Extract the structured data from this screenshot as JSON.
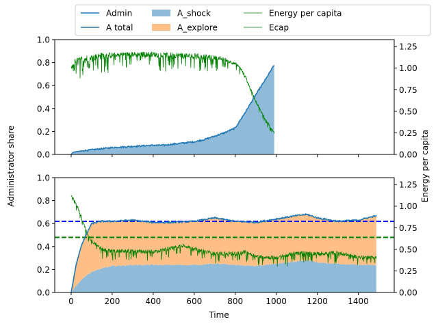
{
  "figure": {
    "ylabel_left": "Administrator share",
    "ylabel_right": "Energy per capita",
    "xlabel": "Time"
  },
  "legend": [
    {
      "label": "Admin",
      "kind": "line",
      "color": "#1f77b4"
    },
    {
      "label": "A total",
      "kind": "line",
      "color": "#1f77b4"
    },
    {
      "label": "A_shock",
      "kind": "patch",
      "color": "#8fbbd9"
    },
    {
      "label": "A_explore",
      "kind": "patch",
      "color": "#ffbf86"
    },
    {
      "label": "Energy per capita",
      "kind": "thin-line",
      "color": "#008000"
    },
    {
      "label": "Ecap",
      "kind": "thin-line",
      "color": "#008000"
    }
  ],
  "chart_data": [
    {
      "type": "area",
      "panel": "top",
      "x_range": [
        -80,
        1575
      ],
      "xticks": [
        0,
        200,
        400,
        600,
        800,
        1000,
        1200,
        1400
      ],
      "xtick_labels_visible": false,
      "ylim_left": [
        0,
        1.0
      ],
      "yticks_left": [
        "0.0",
        "0.2",
        "0.4",
        "0.6",
        "0.8",
        "1.0"
      ],
      "ylim_right": [
        0,
        1.33
      ],
      "yticks_right": [
        "0.00",
        "0.25",
        "0.50",
        "0.75",
        "1.00",
        "1.25"
      ],
      "grid": false,
      "series": [
        {
          "name": "A_shock",
          "kind": "area",
          "color": "#8fbbd9",
          "x": [
            0,
            10,
            50,
            100,
            200,
            300,
            400,
            450,
            500,
            550,
            600,
            650,
            700,
            750,
            800,
            850,
            900,
            950,
            990
          ],
          "y": [
            0.0,
            0.02,
            0.03,
            0.04,
            0.06,
            0.07,
            0.08,
            0.08,
            0.09,
            0.1,
            0.11,
            0.13,
            0.16,
            0.19,
            0.23,
            0.37,
            0.52,
            0.66,
            0.78
          ]
        },
        {
          "name": "A total",
          "kind": "line",
          "color": "#1f77b4",
          "x": [
            0,
            10,
            50,
            100,
            200,
            300,
            400,
            450,
            500,
            550,
            600,
            650,
            700,
            750,
            800,
            850,
            900,
            950,
            990
          ],
          "y": [
            0.0,
            0.02,
            0.03,
            0.04,
            0.06,
            0.07,
            0.08,
            0.08,
            0.09,
            0.1,
            0.11,
            0.13,
            0.16,
            0.19,
            0.23,
            0.37,
            0.52,
            0.66,
            0.78
          ]
        },
        {
          "name": "Energy per capita",
          "kind": "energy",
          "color": "#008000",
          "axis": "right",
          "x": [
            0,
            20,
            50,
            100,
            150,
            200,
            250,
            300,
            350,
            400,
            450,
            500,
            550,
            600,
            650,
            700,
            750,
            800,
            825,
            850,
            875,
            900,
            925,
            950,
            975,
            990
          ],
          "y": [
            1.0,
            1.08,
            1.1,
            1.12,
            1.14,
            1.15,
            1.16,
            1.16,
            1.16,
            1.16,
            1.15,
            1.15,
            1.14,
            1.14,
            1.13,
            1.12,
            1.1,
            1.05,
            1.0,
            0.9,
            0.75,
            0.62,
            0.5,
            0.4,
            0.3,
            0.26
          ],
          "dip_depth": [
            0.08,
            0.15,
            0.17,
            0.17,
            0.18,
            0.14,
            0.12,
            0.13,
            0.14,
            0.14,
            0.15,
            0.15,
            0.14,
            0.14,
            0.14,
            0.12,
            0.1,
            0.07,
            0.07,
            0.07,
            0.07,
            0.07,
            0.07,
            0.06,
            0.05,
            0.03
          ]
        }
      ]
    },
    {
      "type": "area",
      "panel": "bottom",
      "x_range": [
        -80,
        1575
      ],
      "xticks": [
        0,
        200,
        400,
        600,
        800,
        1000,
        1200,
        1400
      ],
      "xtick_labels": [
        "0",
        "200",
        "400",
        "600",
        "800",
        "1000",
        "1200",
        "1400"
      ],
      "ylim_left": [
        0,
        1.0
      ],
      "yticks_left": [
        "0.0",
        "0.2",
        "0.4",
        "0.6",
        "0.8",
        "1.0"
      ],
      "ylim_right": [
        0,
        1.33
      ],
      "yticks_right": [
        "0.00",
        "0.25",
        "0.50",
        "0.75",
        "1.00",
        "1.25"
      ],
      "grid": false,
      "hlines": [
        {
          "y": 0.62,
          "color": "#0000ff",
          "style": "dashed"
        },
        {
          "y": 0.48,
          "color": "#008000",
          "style": "dashed"
        }
      ],
      "series": [
        {
          "name": "A_shock",
          "kind": "area",
          "color": "#8fbbd9",
          "x": [
            0,
            25,
            50,
            75,
            100,
            150,
            200,
            300,
            400,
            500,
            600,
            700,
            800,
            900,
            1000,
            1100,
            1150,
            1200,
            1300,
            1400,
            1490
          ],
          "y": [
            0.0,
            0.06,
            0.11,
            0.15,
            0.18,
            0.21,
            0.23,
            0.24,
            0.24,
            0.24,
            0.24,
            0.25,
            0.24,
            0.23,
            0.25,
            0.27,
            0.28,
            0.26,
            0.25,
            0.24,
            0.24
          ]
        },
        {
          "name": "A_explore",
          "kind": "area-stacked",
          "color": "#ffbf86",
          "x": [
            0,
            25,
            50,
            75,
            100,
            150,
            200,
            300,
            400,
            500,
            600,
            700,
            800,
            900,
            1000,
            1100,
            1150,
            1200,
            1300,
            1400,
            1490
          ],
          "y": [
            0.0,
            0.19,
            0.3,
            0.36,
            0.42,
            0.41,
            0.39,
            0.39,
            0.37,
            0.37,
            0.38,
            0.4,
            0.38,
            0.38,
            0.39,
            0.4,
            0.4,
            0.39,
            0.37,
            0.39,
            0.43
          ]
        },
        {
          "name": "A total",
          "kind": "line",
          "color": "#1f77b4",
          "x": [
            0,
            25,
            50,
            75,
            100,
            150,
            200,
            300,
            400,
            500,
            600,
            700,
            800,
            900,
            1000,
            1100,
            1150,
            1200,
            1300,
            1400,
            1490
          ],
          "y": [
            0.0,
            0.25,
            0.41,
            0.51,
            0.6,
            0.62,
            0.62,
            0.63,
            0.61,
            0.61,
            0.62,
            0.65,
            0.62,
            0.61,
            0.64,
            0.67,
            0.68,
            0.65,
            0.62,
            0.63,
            0.67
          ]
        },
        {
          "name": "Energy per capita",
          "kind": "energy",
          "color": "#008000",
          "axis": "right",
          "x": [
            0,
            10,
            30,
            50,
            75,
            100,
            125,
            150,
            200,
            300,
            400,
            500,
            550,
            600,
            700,
            800,
            850,
            900,
            1000,
            1100,
            1200,
            1300,
            1400,
            1490
          ],
          "y": [
            1.12,
            1.1,
            1.0,
            0.87,
            0.7,
            0.6,
            0.55,
            0.5,
            0.48,
            0.48,
            0.47,
            0.52,
            0.55,
            0.5,
            0.45,
            0.45,
            0.47,
            0.42,
            0.4,
            0.46,
            0.45,
            0.46,
            0.41,
            0.41
          ],
          "dip_depth": [
            0.04,
            0.05,
            0.06,
            0.07,
            0.07,
            0.08,
            0.09,
            0.09,
            0.1,
            0.1,
            0.1,
            0.1,
            0.09,
            0.09,
            0.1,
            0.1,
            0.1,
            0.09,
            0.09,
            0.1,
            0.1,
            0.1,
            0.08,
            0.07
          ]
        }
      ]
    }
  ]
}
